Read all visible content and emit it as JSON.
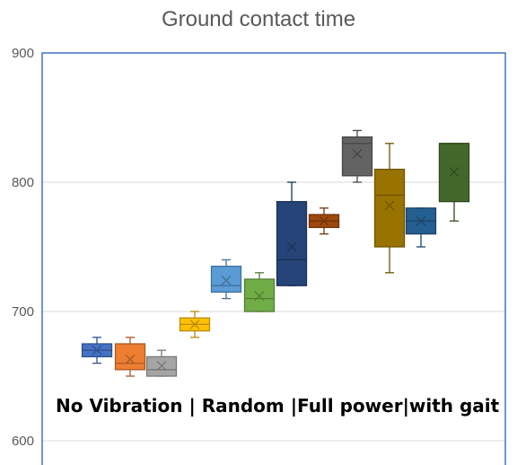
{
  "chart_data": {
    "type": "box",
    "title": "Ground contact time",
    "xlabel": "",
    "ylabel": "",
    "ylim": [
      600,
      900
    ],
    "yticks": [
      600,
      700,
      800,
      900
    ],
    "grid": true,
    "annotation": "No Vibration | Random |Full power|with gait",
    "series": [
      {
        "color": "#4472C4",
        "min": 660,
        "q1": 665,
        "median": 670,
        "q3": 675,
        "max": 680,
        "mean": 670
      },
      {
        "color": "#ED7D31",
        "min": 650,
        "q1": 655,
        "median": 660,
        "q3": 675,
        "max": 680,
        "mean": 663
      },
      {
        "color": "#A5A5A5",
        "min": 650,
        "q1": 650,
        "median": 655,
        "q3": 665,
        "max": 670,
        "mean": 658
      },
      {
        "color": "#FFC000",
        "min": 680,
        "q1": 685,
        "median": 690,
        "q3": 695,
        "max": 700,
        "mean": 690
      },
      {
        "color": "#5B9BD5",
        "min": 710,
        "q1": 715,
        "median": 720,
        "q3": 735,
        "max": 740,
        "mean": 724
      },
      {
        "color": "#70AD47",
        "min": 700,
        "q1": 700,
        "median": 710,
        "q3": 725,
        "max": 730,
        "mean": 712
      },
      {
        "color": "#264478",
        "min": 720,
        "q1": 720,
        "median": 740,
        "q3": 785,
        "max": 800,
        "mean": 750
      },
      {
        "color": "#9E480E",
        "min": 760,
        "q1": 765,
        "median": 770,
        "q3": 775,
        "max": 780,
        "mean": 770
      },
      {
        "color": "#636363",
        "min": 800,
        "q1": 805,
        "median": 830,
        "q3": 835,
        "max": 840,
        "mean": 822
      },
      {
        "color": "#997300",
        "min": 730,
        "q1": 750,
        "median": 790,
        "q3": 810,
        "max": 830,
        "mean": 782
      },
      {
        "color": "#255E91",
        "min": 750,
        "q1": 760,
        "median": 770,
        "q3": 780,
        "max": 780,
        "mean": 770
      },
      {
        "color": "#43682B",
        "min": 770,
        "q1": 785,
        "median": 830,
        "q3": 830,
        "max": 830,
        "mean": 808
      }
    ]
  }
}
